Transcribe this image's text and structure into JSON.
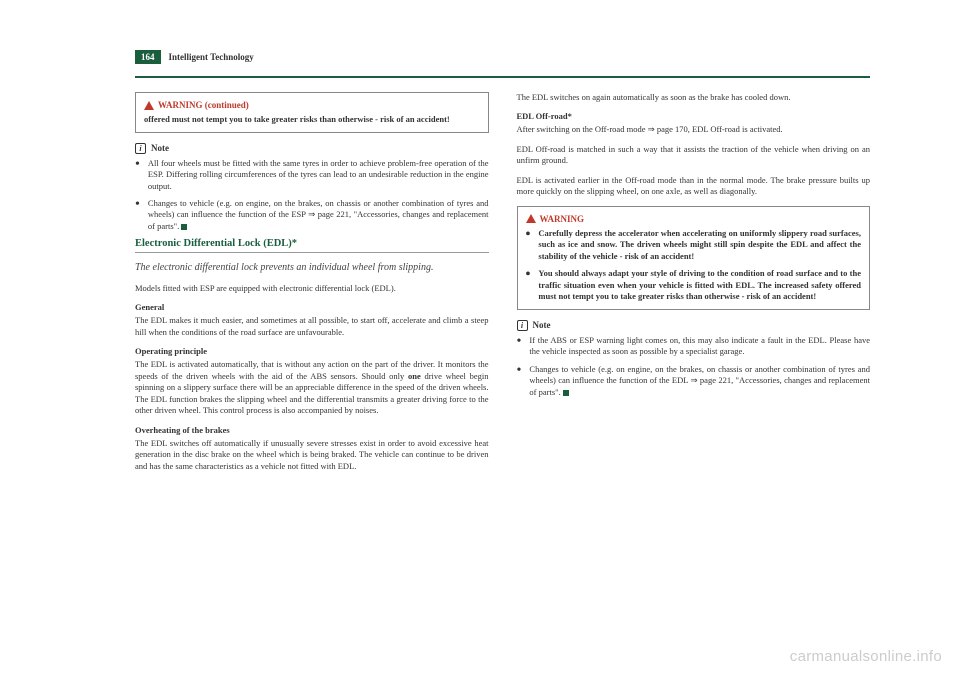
{
  "header": {
    "page_number": "164",
    "chapter": "Intelligent Technology"
  },
  "left_column": {
    "warning_cont": {
      "title": "WARNING (continued)",
      "text": "offered must not tempt you to take greater risks than otherwise - risk of an accident!"
    },
    "note": {
      "title": "Note",
      "bullets": [
        "All four wheels must be fitted with the same tyres in order to achieve problem-free operation of the ESP. Differing rolling circumferences of the tyres can lead to an undesirable reduction in the engine output.",
        "Changes to vehicle (e.g. on engine, on the brakes, on chassis or another combination of tyres and wheels) can influence the function of the ESP ⇒ page 221, \"Accessories, changes and replacement of parts\"."
      ]
    },
    "edl_section": {
      "heading": "Electronic Differential Lock (EDL)*",
      "lead": "The electronic differential lock prevents an individual wheel from slipping.",
      "intro": "Models fitted with ESP are equipped with electronic differential lock (EDL).",
      "general_head": "General",
      "general_text": "The EDL makes it much easier, and sometimes at all possible, to start off, accelerate and climb a steep hill when the conditions of the road surface are unfavourable.",
      "operating_head": "Operating principle",
      "operating_text_1": "The EDL is activated automatically, that is without any action on the part of the driver. It monitors the speeds of the driven wheels with the aid of the ABS sensors. Should only ",
      "operating_bold": "one",
      "operating_text_2": " drive wheel begin spinning on a slippery surface there will be an appreciable difference in the speed of the driven wheels. The EDL function brakes the slipping wheel and the differential transmits a greater driving force to the other driven wheel. This control process is also accompanied by noises.",
      "overheat_head": "Overheating of the brakes",
      "overheat_text": "The EDL switches off automatically if unusually severe stresses exist in order to avoid excessive heat generation in the disc brake on the wheel which is being braked. The vehicle can continue to be driven and has the same characteristics as a vehicle not fitted with EDL."
    }
  },
  "right_column": {
    "cont_text": "The EDL switches on again automatically as soon as the brake has cooled down.",
    "offroad_head": "EDL Off-road*",
    "offroad_p1": "After switching on the Off-road mode ⇒ page 170, EDL Off-road is activated.",
    "offroad_p2": "EDL Off-road is matched in such a way that it assists the traction of the vehicle when driving on an unfirm ground.",
    "offroad_p3": "EDL is activated earlier in the Off-road mode than in the normal mode. The brake pressure builts up more quickly on the slipping wheel, on one axle, as well as diagonally.",
    "warning": {
      "title": "WARNING",
      "bullets": [
        "Carefully depress the accelerator when accelerating on uniformly slippery road surfaces, such as ice and snow. The driven wheels might still spin despite the EDL and affect the stability of the vehicle - risk of an accident!",
        "You should always adapt your style of driving to the condition of road surface and to the traffic situation even when your vehicle is fitted with EDL. The increased safety offered must not tempt you to take greater risks than otherwise - risk of an accident!"
      ]
    },
    "note": {
      "title": "Note",
      "bullets": [
        "If the ABS or ESP warning light comes on, this may also indicate a fault in the EDL. Please have the vehicle inspected as soon as possible by a specialist garage.",
        "Changes to vehicle (e.g. on engine, on the brakes, on chassis or another combination of tyres and wheels) can influence the function of the EDL ⇒ page 221, \"Accessories, changes and replacement of parts\"."
      ]
    }
  },
  "watermark": "carmanualsonline.info"
}
